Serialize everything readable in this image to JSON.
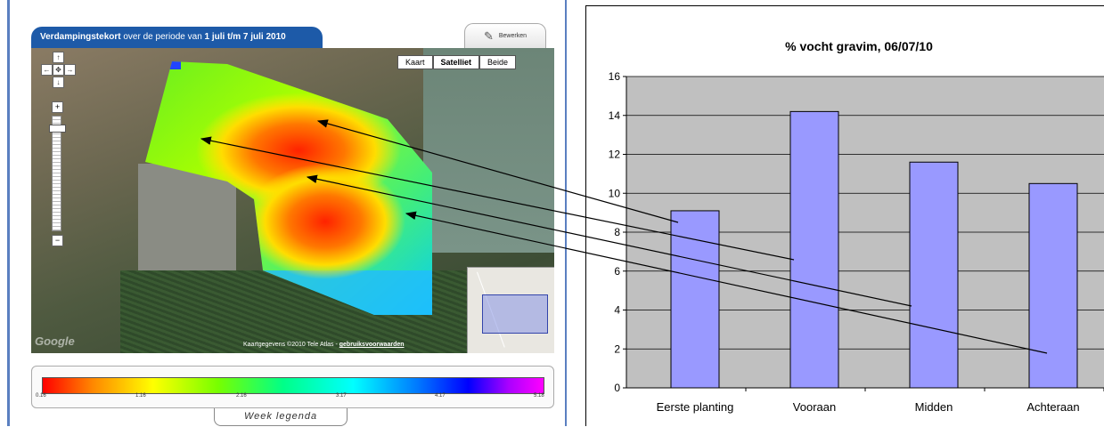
{
  "map": {
    "header_title": "Verdampingstekort",
    "header_mid": " over de periode van ",
    "header_period": "1 juli t/m 7 juli 2010",
    "edit_label": "Bewerken",
    "map_types": [
      {
        "label": "Kaart",
        "active": false
      },
      {
        "label": "Satelliet",
        "active": true
      },
      {
        "label": "Beide",
        "active": false
      }
    ],
    "google_logo": "Google",
    "attribution_text": "Kaartgegevens ©2010 Tele Atlas - ",
    "attribution_link": "gebruiksvoorwaarden",
    "legend": {
      "ticks": [
        "0.16",
        "1.16",
        "2.16",
        "3.17",
        "4.17",
        "5.18"
      ],
      "tab_label": "Week legenda"
    },
    "icons": {
      "pan_up": "↑",
      "pan_left": "←",
      "pan_center": "✥",
      "pan_right": "→",
      "pan_down": "↓",
      "zoom_in": "+",
      "zoom_out": "−",
      "edit": "✎"
    },
    "colors": {
      "header_bg": "#1d5aa8",
      "frame_rule": "#5a7fc0"
    }
  },
  "chart_data": {
    "type": "bar",
    "title": "% vocht gravim, 06/07/10",
    "categories": [
      "Eerste planting",
      "Vooraan",
      "Midden",
      "Achteraan"
    ],
    "values": [
      9.1,
      14.2,
      11.6,
      10.5
    ],
    "ylim": [
      0,
      16
    ],
    "yticks": [
      0,
      2,
      4,
      6,
      8,
      10,
      12,
      14,
      16
    ],
    "grid": true,
    "bar_color": "#9999ff",
    "plot_bg": "#c0c0c0"
  }
}
